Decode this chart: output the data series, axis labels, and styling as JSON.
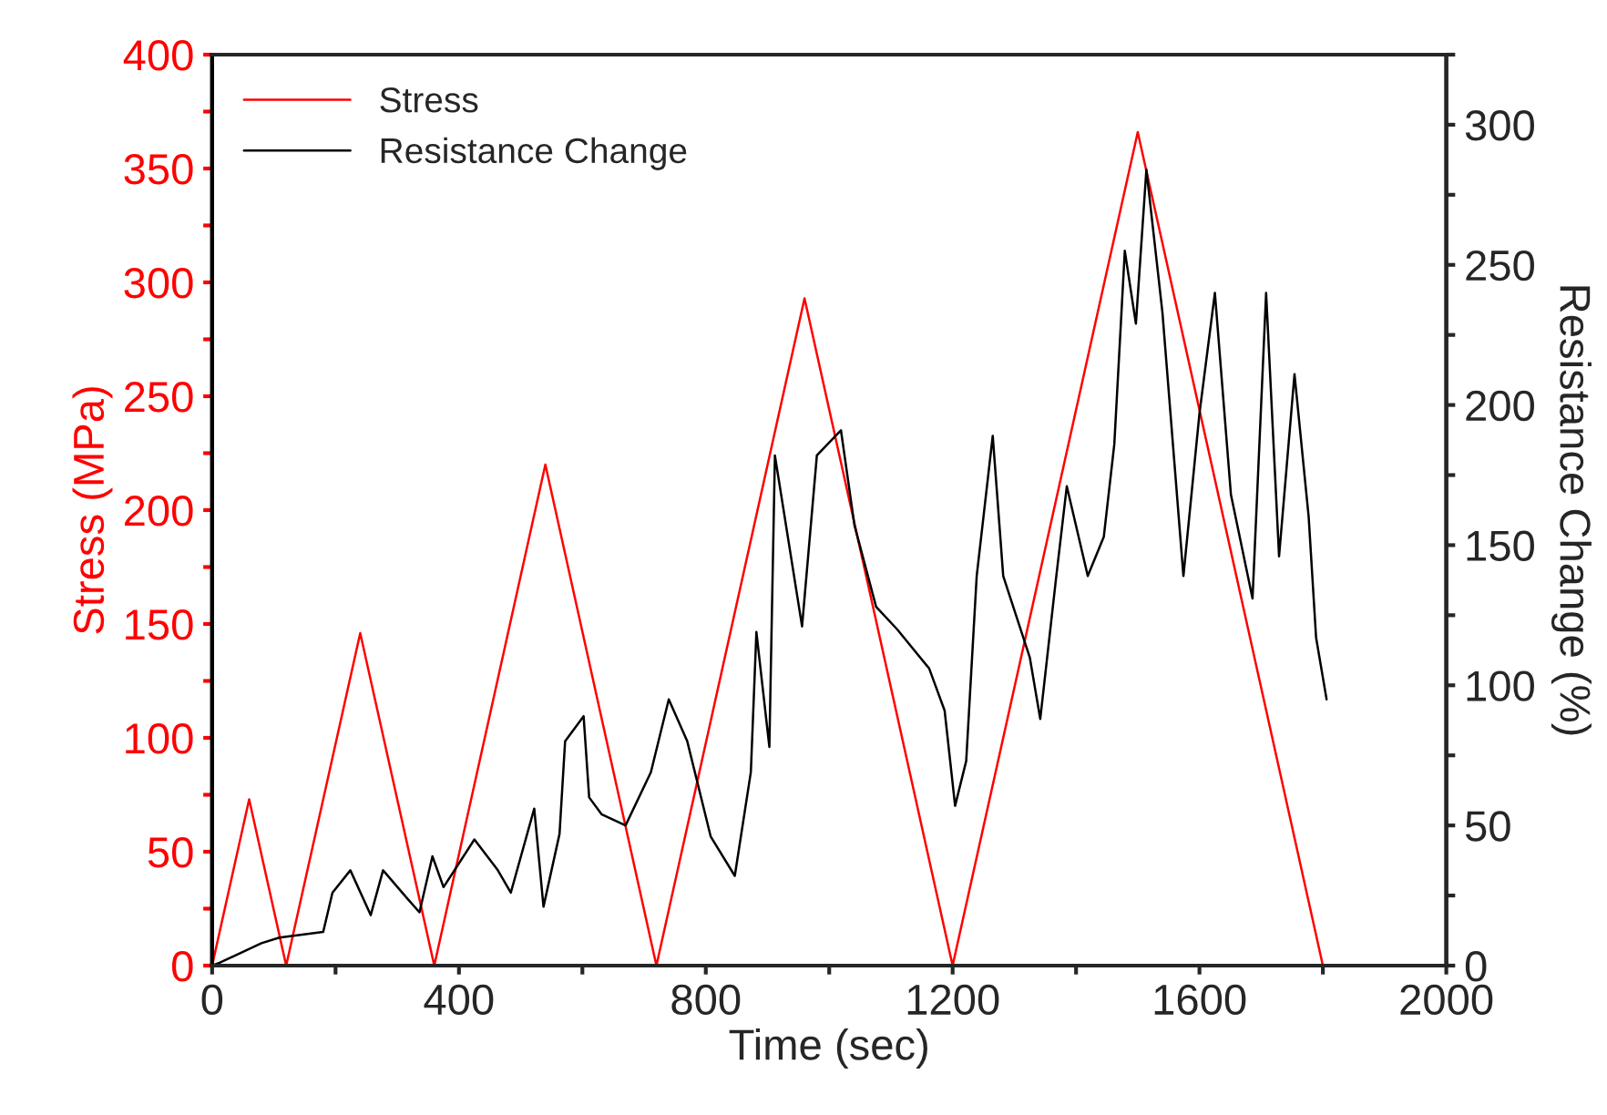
{
  "chart_data": {
    "type": "line",
    "xlabel": "Time (sec)",
    "ylabel": "Stress (MPa)",
    "y2label": "Resistance Change (%)",
    "xlim": [
      0,
      2000
    ],
    "xticks": [
      0,
      {
        "value": 200,
        "label": null
      },
      400,
      {
        "value": 600,
        "label": null
      },
      800,
      {
        "value": 1000,
        "label": null
      },
      1200,
      {
        "value": 1400,
        "label": null
      },
      1600,
      {
        "value": 1800,
        "label": null
      },
      2000
    ],
    "ylim": [
      0,
      400
    ],
    "yticks": [
      0,
      {
        "value": 25,
        "label": null
      },
      50,
      {
        "value": 75,
        "label": null
      },
      100,
      {
        "value": 125,
        "label": null
      },
      150,
      {
        "value": 175,
        "label": null
      },
      200,
      {
        "value": 225,
        "label": null
      },
      250,
      {
        "value": 275,
        "label": null
      },
      300,
      {
        "value": 325,
        "label": null
      },
      350,
      {
        "value": 375,
        "label": null
      },
      400
    ],
    "y2lim": [
      0,
      325
    ],
    "y2ticks": [
      0,
      {
        "value": 25,
        "label": null
      },
      50,
      {
        "value": 75,
        "label": null
      },
      100,
      {
        "value": 125,
        "label": null
      },
      150,
      {
        "value": 175,
        "label": null
      },
      200,
      {
        "value": 225,
        "label": null
      },
      250,
      {
        "value": 275,
        "label": null
      },
      300,
      {
        "value": 325,
        "label": null
      }
    ],
    "legend": "top left",
    "grid": false,
    "series": [
      {
        "name": "Stress",
        "color": "#ff0000",
        "x": [
          0,
          60,
          120,
          240,
          360,
          540,
          720,
          960,
          1200,
          1500,
          1800
        ],
        "values": [
          0,
          73,
          0,
          146,
          0,
          220,
          0,
          293,
          0,
          366,
          0
        ]
      },
      {
        "name": "Resistance Change",
        "color": "#000000",
        "axis": "y2",
        "x": [
          0,
          12,
          80,
          109,
          180,
          195,
          224,
          257,
          277,
          316,
          336,
          357,
          375,
          425,
          463,
          484,
          522,
          537,
          563,
          572,
          602,
          611,
          631,
          670,
          711,
          740,
          770,
          808,
          847,
          873,
          882,
          903,
          912,
          956,
          980,
          1019,
          1041,
          1076,
          1110,
          1162,
          1187,
          1204,
          1222,
          1239,
          1265,
          1282,
          1325,
          1342,
          1368,
          1385,
          1419,
          1445,
          1462,
          1479,
          1497,
          1514,
          1540,
          1574,
          1600,
          1625,
          1651,
          1686,
          1708,
          1729,
          1754,
          1777,
          1789,
          1806
        ],
        "values": [
          0,
          1,
          8,
          10,
          12,
          26,
          34,
          18,
          34,
          24,
          19,
          39,
          28,
          45,
          34,
          26,
          56,
          21,
          47,
          80,
          89,
          60,
          54,
          50,
          69,
          95,
          80,
          46,
          32,
          69,
          119,
          78,
          182,
          121,
          182,
          191,
          157,
          128,
          120,
          106,
          91,
          57,
          73,
          139,
          189,
          139,
          110,
          88,
          139,
          171,
          139,
          153,
          186,
          255,
          229,
          284,
          233,
          139,
          197,
          240,
          168,
          131,
          240,
          146,
          211,
          160,
          117,
          95
        ]
      }
    ]
  }
}
